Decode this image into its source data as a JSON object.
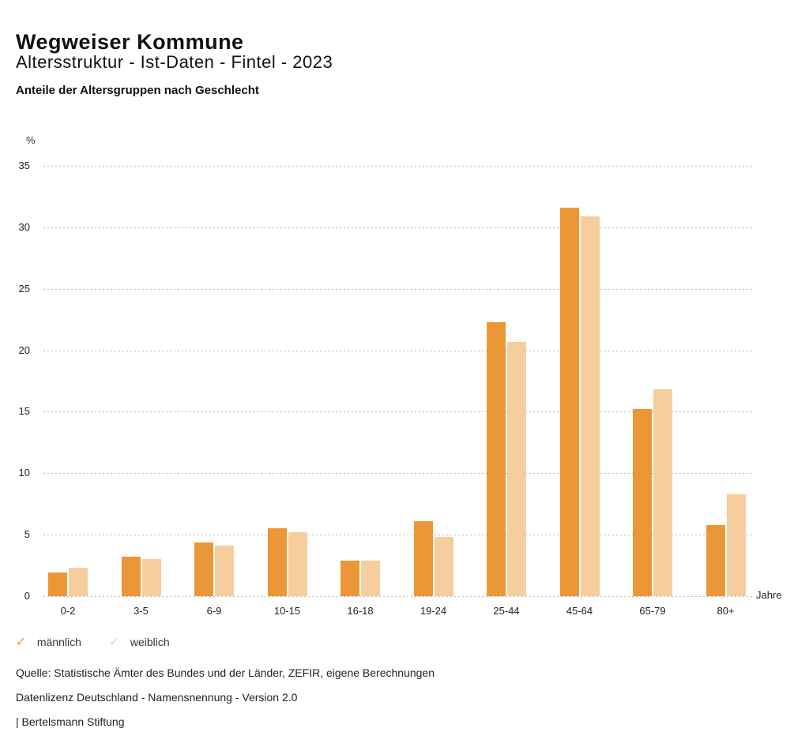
{
  "header": {
    "title": "Wegweiser Kommune",
    "subtitle": "Altersstruktur - Ist-Daten - Fintel - 2023",
    "caption": "Anteile der Altersgruppen nach Geschlecht"
  },
  "chart_data": {
    "type": "bar",
    "grouped": true,
    "title": "Anteile der Altersgruppen nach Geschlecht",
    "unit_label": "%",
    "xlabel": "Jahre",
    "ylabel": "%",
    "ylim": [
      0,
      35
    ],
    "yticks": [
      0,
      5,
      10,
      15,
      20,
      25,
      30,
      35
    ],
    "grid": "horizontal-dotted",
    "legend_position": "bottom-left",
    "categories": [
      "0-2",
      "3-5",
      "6-9",
      "10-15",
      "16-18",
      "19-24",
      "25-44",
      "45-64",
      "65-79",
      "80+"
    ],
    "series": [
      {
        "name": "männlich",
        "color": "#EC9737",
        "values": [
          1.9,
          3.2,
          4.4,
          5.5,
          2.9,
          6.1,
          22.3,
          31.6,
          15.2,
          5.8
        ]
      },
      {
        "name": "weiblich",
        "color": "#F6CE9D",
        "values": [
          2.3,
          3.0,
          4.1,
          5.2,
          2.9,
          4.8,
          20.7,
          30.9,
          16.8,
          8.3
        ]
      }
    ]
  },
  "icons": {
    "legend_check": "✓"
  },
  "footer": {
    "source": "Quelle: Statistische Ämter des Bundes und der Länder, ZEFIR, eigene Berechnungen",
    "license": "Datenlizenz Deutschland - Namensnennung - Version 2.0",
    "attribution": "| Bertelsmann Stiftung"
  },
  "colors": {
    "maennlich_bar": "#EC9737",
    "weiblich_bar": "#F6CE9D",
    "gridline": "#B9B9B9",
    "text": "#1A1A1A",
    "background": "#FFFFFF"
  }
}
